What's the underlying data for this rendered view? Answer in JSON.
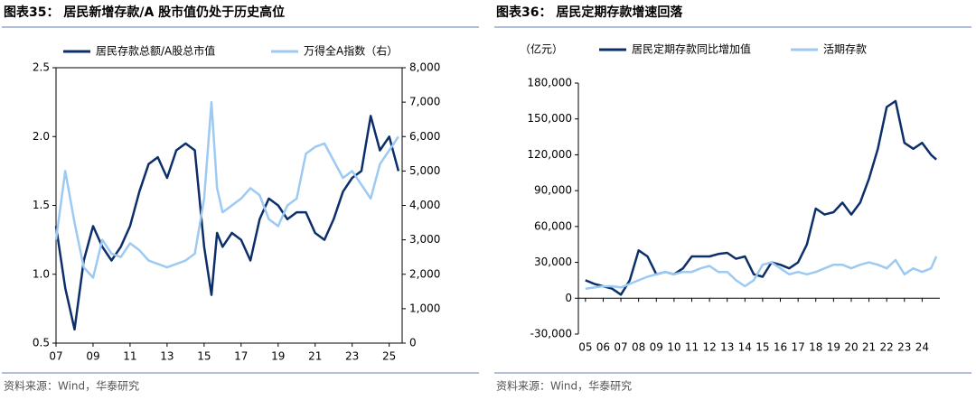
{
  "chart_data": [
    {
      "type": "line",
      "title": "图表35：  居民新增存款/A 股市值仍处于历史高位",
      "source": "资料来源：Wind，华泰研究",
      "x": [
        2007,
        2007.5,
        2008,
        2008.5,
        2009,
        2009.5,
        2010,
        2010.5,
        2011,
        2011.5,
        2012,
        2012.5,
        2013,
        2013.5,
        2014,
        2014.5,
        2015,
        2015.4,
        2015.7,
        2016,
        2016.5,
        2017,
        2017.5,
        2018,
        2018.5,
        2019,
        2019.5,
        2020,
        2020.5,
        2021,
        2021.5,
        2022,
        2022.5,
        2023,
        2023.5,
        2024,
        2024.5,
        2025,
        2025.5
      ],
      "series": [
        {
          "name": "居民存款总额/A股总市值",
          "color": "#0c2f6b",
          "values": [
            1.35,
            0.9,
            0.6,
            1.1,
            1.35,
            1.2,
            1.1,
            1.2,
            1.35,
            1.6,
            1.8,
            1.85,
            1.7,
            1.9,
            1.95,
            1.9,
            1.2,
            0.85,
            1.3,
            1.2,
            1.3,
            1.25,
            1.1,
            1.4,
            1.55,
            1.5,
            1.4,
            1.45,
            1.45,
            1.3,
            1.25,
            1.4,
            1.6,
            1.7,
            1.75,
            2.15,
            1.9,
            2.0,
            1.75
          ]
        },
        {
          "name": "万得全A指数（右）",
          "color": "#9ccaf2",
          "axis": "y2",
          "values": [
            3000,
            5000,
            3500,
            2200,
            1900,
            3000,
            2600,
            2500,
            2900,
            2700,
            2400,
            2300,
            2200,
            2300,
            2400,
            2600,
            4200,
            7000,
            4500,
            3800,
            4000,
            4200,
            4500,
            4300,
            3600,
            3400,
            4000,
            4200,
            5500,
            5700,
            5800,
            5300,
            4800,
            5000,
            4600,
            4200,
            5200,
            5600,
            6000
          ]
        }
      ],
      "xlim": [
        2007,
        2025.7
      ],
      "xticks": [
        {
          "value": 2007,
          "label": "07"
        },
        {
          "value": 2009,
          "label": "09"
        },
        {
          "value": 2011,
          "label": "11"
        },
        {
          "value": 2013,
          "label": "13"
        },
        {
          "value": 2015,
          "label": "15"
        },
        {
          "value": 2017,
          "label": "17"
        },
        {
          "value": 2019,
          "label": "19"
        },
        {
          "value": 2021,
          "label": "21"
        },
        {
          "value": 2023,
          "label": "23"
        },
        {
          "value": 2025,
          "label": "25"
        }
      ],
      "ylim": [
        0.5,
        2.5
      ],
      "yticks": [
        0.5,
        {
          "value": 1,
          "label": "1.0"
        },
        1.5,
        {
          "value": 2,
          "label": "2.0"
        },
        2.5
      ],
      "y2lim": [
        0,
        8000
      ],
      "y2ticks": [
        0,
        {
          "value": 1000,
          "label": "1,000"
        },
        {
          "value": 2000,
          "label": "2,000"
        },
        {
          "value": 3000,
          "label": "3,000"
        },
        {
          "value": 4000,
          "label": "4,000"
        },
        {
          "value": 5000,
          "label": "5,000"
        },
        {
          "value": 6000,
          "label": "6,000"
        },
        {
          "value": 7000,
          "label": "7,000"
        },
        {
          "value": 8000,
          "label": "8,000"
        }
      ]
    },
    {
      "type": "line",
      "title": "图表36：  居民定期存款增速回落",
      "source": "资料来源：Wind，华泰研究",
      "y_unit": "（亿元）",
      "x": [
        2005,
        2005.5,
        2006,
        2006.5,
        2007,
        2007.5,
        2008,
        2008.5,
        2009,
        2009.5,
        2010,
        2010.5,
        2011,
        2011.5,
        2012,
        2012.5,
        2013,
        2013.5,
        2014,
        2014.5,
        2015,
        2015.5,
        2016,
        2016.5,
        2017,
        2017.5,
        2018,
        2018.5,
        2019,
        2019.5,
        2020,
        2020.5,
        2021,
        2021.5,
        2022,
        2022.5,
        2023,
        2023.5,
        2024,
        2024.5,
        2024.8
      ],
      "series": [
        {
          "name": "居民定期存款同比增加值",
          "color": "#0c2f6b",
          "values": [
            15000,
            12000,
            10000,
            8000,
            3000,
            15000,
            40000,
            35000,
            20000,
            22000,
            20000,
            25000,
            35000,
            35000,
            35000,
            37000,
            38000,
            33000,
            35000,
            20000,
            18000,
            30000,
            28000,
            25000,
            30000,
            45000,
            75000,
            70000,
            72000,
            80000,
            70000,
            80000,
            100000,
            125000,
            160000,
            165000,
            130000,
            125000,
            130000,
            120000,
            116000
          ]
        },
        {
          "name": "活期存款",
          "color": "#9ccaf2",
          "values": [
            8000,
            9000,
            10000,
            10000,
            9000,
            12000,
            15000,
            18000,
            20000,
            22000,
            20000,
            22000,
            22000,
            25000,
            27000,
            22000,
            22000,
            15000,
            10000,
            15000,
            28000,
            30000,
            25000,
            20000,
            22000,
            20000,
            22000,
            25000,
            28000,
            28000,
            25000,
            28000,
            30000,
            28000,
            25000,
            32000,
            20000,
            25000,
            22000,
            25000,
            35000
          ]
        }
      ],
      "xlim": [
        2004.6,
        2025
      ],
      "xticks": [
        {
          "value": 2005,
          "label": "05"
        },
        {
          "value": 2006,
          "label": "06"
        },
        {
          "value": 2007,
          "label": "07"
        },
        {
          "value": 2008,
          "label": "08"
        },
        {
          "value": 2009,
          "label": "09"
        },
        {
          "value": 2010,
          "label": "10"
        },
        {
          "value": 2011,
          "label": "11"
        },
        {
          "value": 2012,
          "label": "12"
        },
        {
          "value": 2013,
          "label": "13"
        },
        {
          "value": 2014,
          "label": "14"
        },
        {
          "value": 2015,
          "label": "15"
        },
        {
          "value": 2016,
          "label": "16"
        },
        {
          "value": 2017,
          "label": "17"
        },
        {
          "value": 2018,
          "label": "18"
        },
        {
          "value": 2019,
          "label": "19"
        },
        {
          "value": 2020,
          "label": "20"
        },
        {
          "value": 2021,
          "label": "21"
        },
        {
          "value": 2022,
          "label": "22"
        },
        {
          "value": 2023,
          "label": "23"
        },
        {
          "value": 2024,
          "label": "24"
        }
      ],
      "ylim": [
        -30000,
        180000
      ],
      "yticks": [
        {
          "value": -30000,
          "label": "-30,000"
        },
        0,
        {
          "value": 30000,
          "label": "30,000"
        },
        {
          "value": 60000,
          "label": "60,000"
        },
        {
          "value": 90000,
          "label": "90,000"
        },
        {
          "value": 120000,
          "label": "120,000"
        },
        {
          "value": 150000,
          "label": "150,000"
        },
        {
          "value": 180000,
          "label": "180,000"
        }
      ]
    }
  ]
}
